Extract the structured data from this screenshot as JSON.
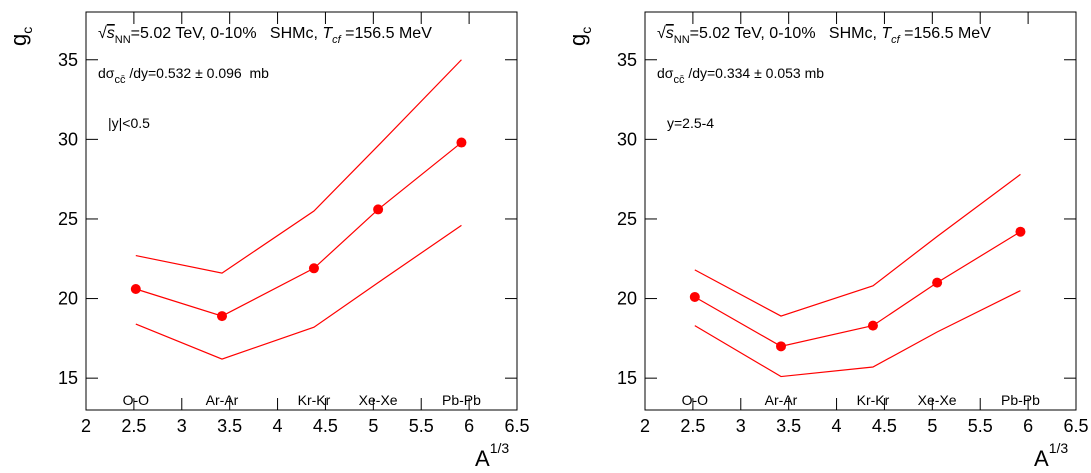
{
  "chart_data": [
    {
      "type": "line",
      "x": [
        2.52,
        3.42,
        4.38,
        5.05,
        5.92
      ],
      "point_labels": [
        "O-O",
        "Ar-Ar",
        "Kr-Kr",
        "Xe-Xe",
        "Pb-Pb"
      ],
      "series": [
        {
          "color": "#ff0000",
          "marker": true,
          "values": [
            20.6,
            18.9,
            21.9,
            25.6,
            29.8
          ]
        },
        {
          "color": "#ff0000",
          "marker": false,
          "values": [
            22.7,
            21.6,
            25.5,
            29.6,
            35.0
          ]
        },
        {
          "color": "#ff0000",
          "marker": false,
          "values": [
            18.4,
            16.2,
            18.2,
            21.0,
            24.6
          ]
        }
      ],
      "xlim": [
        2,
        6.5
      ],
      "ylim": [
        13,
        38
      ],
      "xticks": [
        2,
        2.5,
        3,
        3.5,
        4,
        4.5,
        5,
        5.5,
        6,
        6.5
      ],
      "yticks": [
        15,
        20,
        25,
        30,
        35
      ],
      "xlabel": {
        "text": "A",
        "sup": "1/3"
      },
      "ylabel": {
        "text": "g",
        "sub": "c"
      },
      "annotations": [
        {
          "parts": [
            {
              "text": "√",
              "style": "normal"
            },
            {
              "text": "s",
              "style": "italic"
            },
            {
              "text": "NN",
              "style": "sub"
            },
            {
              "text": "=5.02 TeV, 0-10%   SHMc, ",
              "style": "normal"
            },
            {
              "text": "T",
              "style": "italic"
            },
            {
              "text": "cf",
              "style": "italic-sub"
            },
            {
              "text": " =156.5 MeV",
              "style": "normal"
            }
          ]
        },
        {
          "parts": [
            {
              "text": "dσ",
              "style": "normal"
            },
            {
              "text": "cc̄",
              "style": "sub"
            },
            {
              "text": " /dy=0.532 ± 0.096  mb",
              "style": "normal"
            }
          ]
        },
        {
          "parts": [
            {
              "text": "|y|<0.5",
              "style": "normal"
            }
          ]
        }
      ]
    },
    {
      "type": "line",
      "x": [
        2.52,
        3.42,
        4.38,
        5.05,
        5.92
      ],
      "point_labels": [
        "O-O",
        "Ar-Ar",
        "Kr-Kr",
        "Xe-Xe",
        "Pb-Pb"
      ],
      "series": [
        {
          "color": "#ff0000",
          "marker": true,
          "values": [
            20.1,
            17.0,
            18.3,
            21.0,
            24.2
          ]
        },
        {
          "color": "#ff0000",
          "marker": false,
          "values": [
            21.8,
            18.9,
            20.8,
            23.9,
            27.8
          ]
        },
        {
          "color": "#ff0000",
          "marker": false,
          "values": [
            18.3,
            15.1,
            15.7,
            17.9,
            20.5
          ]
        }
      ],
      "xlim": [
        2,
        6.5
      ],
      "ylim": [
        13,
        38
      ],
      "xticks": [
        2,
        2.5,
        3,
        3.5,
        4,
        4.5,
        5,
        5.5,
        6,
        6.5
      ],
      "yticks": [
        15,
        20,
        25,
        30,
        35
      ],
      "xlabel": {
        "text": "A",
        "sup": "1/3"
      },
      "ylabel": {
        "text": "g",
        "sub": "c"
      },
      "annotations": [
        {
          "parts": [
            {
              "text": "√",
              "style": "normal"
            },
            {
              "text": "s",
              "style": "italic"
            },
            {
              "text": "NN",
              "style": "sub"
            },
            {
              "text": "=5.02 TeV, 0-10%   SHMc, ",
              "style": "normal"
            },
            {
              "text": "T",
              "style": "italic"
            },
            {
              "text": "cf",
              "style": "italic-sub"
            },
            {
              "text": " =156.5 MeV",
              "style": "normal"
            }
          ]
        },
        {
          "parts": [
            {
              "text": "dσ",
              "style": "normal"
            },
            {
              "text": "cc̄",
              "style": "sub"
            },
            {
              "text": " /dy=0.334 ± 0.053 mb",
              "style": "normal"
            }
          ]
        },
        {
          "parts": [
            {
              "text": "y=2.5-4",
              "style": "normal"
            }
          ]
        }
      ]
    }
  ]
}
